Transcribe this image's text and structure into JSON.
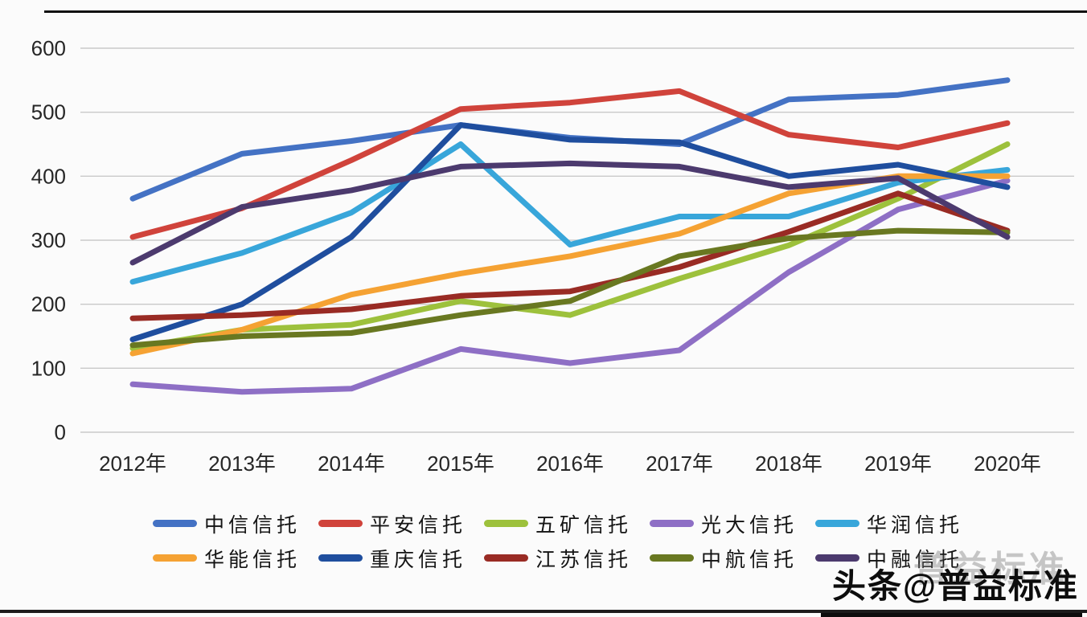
{
  "chart_data": {
    "type": "line",
    "x": [
      "2012年",
      "2013年",
      "2014年",
      "2015年",
      "2016年",
      "2017年",
      "2018年",
      "2019年",
      "2020年"
    ],
    "series": [
      {
        "name": "中信信托",
        "color": "#4472C4",
        "values": [
          365,
          435,
          455,
          480,
          460,
          450,
          520,
          527,
          550
        ]
      },
      {
        "name": "平安信托",
        "color": "#D0433B",
        "values": [
          305,
          350,
          425,
          505,
          515,
          533,
          465,
          445,
          483
        ]
      },
      {
        "name": "五矿信托",
        "color": "#9DC13C",
        "values": [
          131,
          160,
          168,
          205,
          183,
          240,
          292,
          365,
          450
        ]
      },
      {
        "name": "光大信托",
        "color": "#8E6FC5",
        "values": [
          75,
          63,
          68,
          130,
          108,
          128,
          250,
          348,
          393
        ]
      },
      {
        "name": "华润信托",
        "color": "#38A6DA",
        "values": [
          235,
          280,
          343,
          450,
          293,
          337,
          337,
          390,
          410
        ]
      },
      {
        "name": "华能信托",
        "color": "#F5A233",
        "values": [
          123,
          160,
          215,
          248,
          275,
          310,
          373,
          400,
          400
        ]
      },
      {
        "name": "重庆信托",
        "color": "#1F4E9E",
        "values": [
          145,
          200,
          305,
          480,
          457,
          453,
          400,
          418,
          383
        ]
      },
      {
        "name": "江苏信托",
        "color": "#992B24",
        "values": [
          178,
          183,
          192,
          213,
          220,
          258,
          313,
          373,
          315
        ]
      },
      {
        "name": "中航信托",
        "color": "#697821",
        "values": [
          136,
          150,
          155,
          183,
          205,
          275,
          303,
          315,
          312
        ]
      },
      {
        "name": "中融信托",
        "color": "#4C3A6E",
        "values": [
          265,
          352,
          378,
          415,
          420,
          415,
          383,
          397,
          305
        ]
      }
    ],
    "title": "",
    "xlabel": "",
    "ylabel": "",
    "ylim": [
      0,
      600
    ],
    "yticks": [
      0,
      100,
      200,
      300,
      400,
      500,
      600
    ],
    "grid": "horizontal",
    "legend_position": "bottom"
  },
  "watermark": {
    "text": "头条@普益标准",
    "ghost": "普益标准"
  },
  "style": {
    "grid_color": "#c9c9c9",
    "tick_color": "#262626",
    "line_width": 7
  }
}
